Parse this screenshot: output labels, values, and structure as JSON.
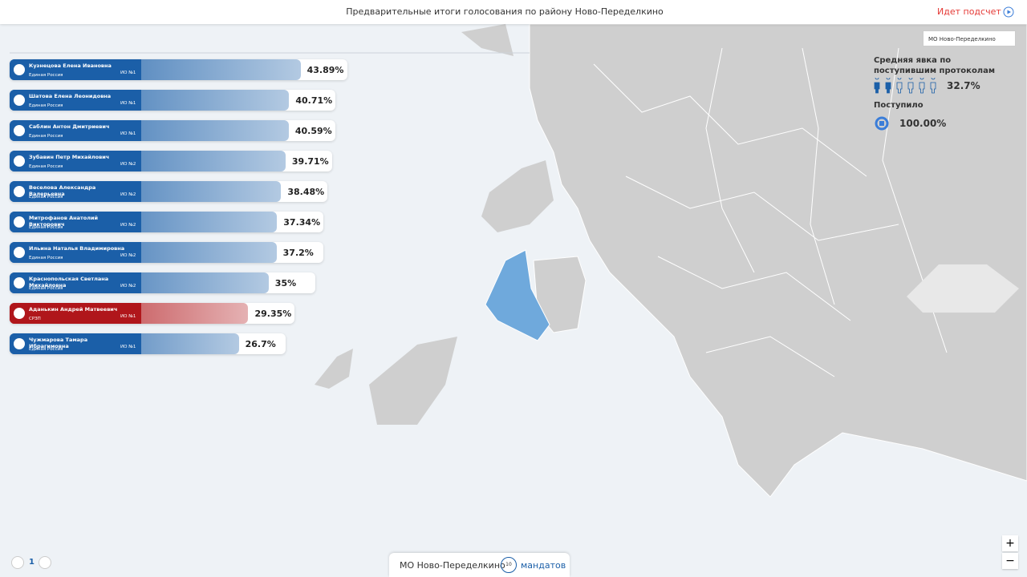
{
  "header": {
    "title": "Предварительные итоги голосования по району Ново-Переделкино",
    "status": "Идет подсчет"
  },
  "district_select": "МО Ново-Переделкино",
  "turnout": {
    "label": "Средняя явка по поступившим протоколам",
    "value": 32.7,
    "value_label": "32.7%"
  },
  "received": {
    "label": "Поступило",
    "value": 100,
    "value_label": "100.00%"
  },
  "candidates": [
    {
      "name": "Кузнецова Елена Ивановна",
      "party": "Единая Россия",
      "district": "ИО №1",
      "value": 43.89,
      "value_label": "43.89%",
      "color": "#1b5fa8"
    },
    {
      "name": "Шатова Елена Леонидовна",
      "party": "Единая Россия",
      "district": "ИО №1",
      "value": 40.71,
      "value_label": "40.71%",
      "color": "#1b5fa8"
    },
    {
      "name": "Саблин Антон Дмитриевич",
      "party": "Единая Россия",
      "district": "ИО №1",
      "value": 40.59,
      "value_label": "40.59%",
      "color": "#1b5fa8"
    },
    {
      "name": "Зубавин Петр Михайлович",
      "party": "Единая Россия",
      "district": "ИО №2",
      "value": 39.71,
      "value_label": "39.71%",
      "color": "#1b5fa8"
    },
    {
      "name": "Веселова Александра Валерьевна",
      "party": "Единая Россия",
      "district": "ИО №2",
      "value": 38.48,
      "value_label": "38.48%",
      "color": "#1b5fa8"
    },
    {
      "name": "Митрофанов Анатолий Викторович",
      "party": "Единая Россия",
      "district": "ИО №2",
      "value": 37.34,
      "value_label": "37.34%",
      "color": "#1b5fa8"
    },
    {
      "name": "Ильина Наталья Владимировна",
      "party": "Единая Россия",
      "district": "ИО №2",
      "value": 37.2,
      "value_label": "37.2%",
      "color": "#1b5fa8"
    },
    {
      "name": "Краснопольская Светлана Михайловна",
      "party": "Единая Россия",
      "district": "ИО №2",
      "value": 35,
      "value_label": "35%",
      "color": "#1b5fa8"
    },
    {
      "name": "Аданькин Андрей Матвеевич",
      "party": "СРЗП",
      "district": "ИО №1",
      "value": 29.35,
      "value_label": "29.35%",
      "color": "#b0161b"
    },
    {
      "name": "Чужмарова Тамара Ибрагимовна",
      "party": "Единая Россия",
      "district": "ИО №1",
      "value": 26.7,
      "value_label": "26.7%",
      "color": "#1b5fa8"
    }
  ],
  "pagination": {
    "page": "1"
  },
  "mandates": {
    "district": "МО Ново-Переделкино",
    "count": 10,
    "label": "мандатов"
  },
  "zoom": [
    "+",
    "−"
  ]
}
